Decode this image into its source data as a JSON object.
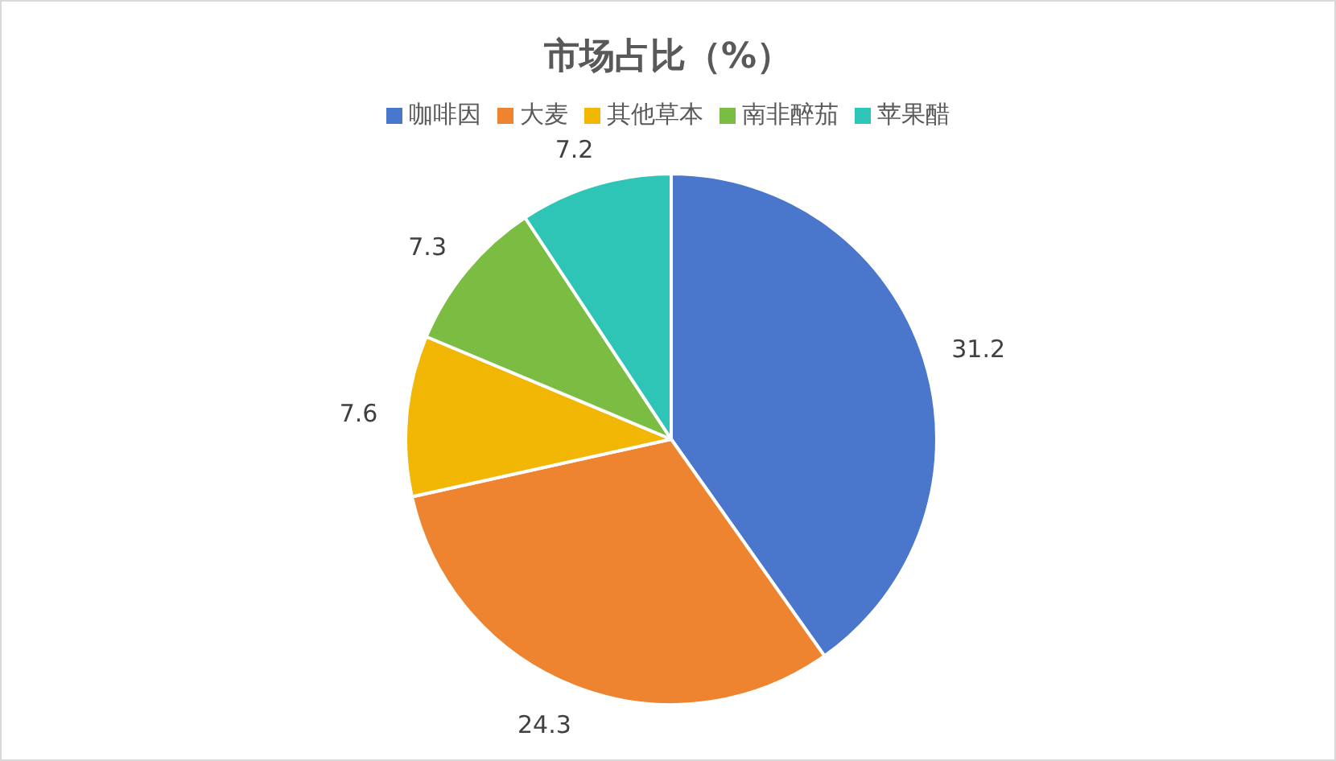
{
  "chart_data": {
    "type": "pie",
    "title": "市场占比（%）",
    "categories": [
      "咖啡因",
      "大麦",
      "其他草本",
      "南非醉茄",
      "苹果醋"
    ],
    "values": [
      31.2,
      24.3,
      7.6,
      7.3,
      7.2
    ],
    "colors": [
      "#4a76cc",
      "#ee8430",
      "#f2b705",
      "#7abd42",
      "#2ec4b6"
    ],
    "data_labels": true,
    "legend": "top"
  }
}
